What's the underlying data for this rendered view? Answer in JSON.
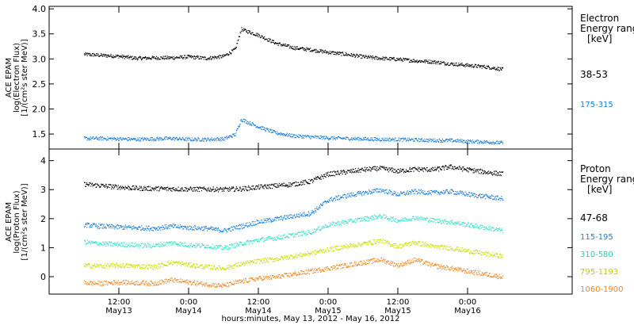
{
  "chart_data": [
    {
      "type": "scatter",
      "title": "",
      "ylabel_lines": [
        "ACE EPAM",
        "log(Electron Flux)",
        "[1/(cm²s ster MeV)]"
      ],
      "ylim": [
        1.2,
        4.05
      ],
      "yticks": [
        1.5,
        2.0,
        2.5,
        3.0,
        3.5,
        4.0
      ],
      "yticklabels": [
        "1.5",
        "2.0",
        "2.5",
        "3.0",
        "3.5",
        "4.0"
      ],
      "legend_title": [
        "Electron",
        "Energy ranges"
      ],
      "legend_unit": "[keV]",
      "series": [
        {
          "name": "38-53",
          "color": "#000000",
          "x": [
            0,
            3,
            6,
            9,
            12,
            15,
            18,
            21,
            24,
            26,
            27,
            30,
            33,
            36,
            39,
            42,
            45,
            48,
            51,
            54,
            57,
            60,
            63,
            66,
            69,
            72
          ],
          "y": [
            3.1,
            3.08,
            3.06,
            3.02,
            3.03,
            3.03,
            3.05,
            3.02,
            3.06,
            3.2,
            3.6,
            3.48,
            3.32,
            3.23,
            3.19,
            3.14,
            3.1,
            3.05,
            3.02,
            3.0,
            2.97,
            2.95,
            2.91,
            2.88,
            2.85,
            2.8
          ]
        },
        {
          "name": "175-315",
          "color": "#1a7fd8",
          "x": [
            0,
            3,
            6,
            9,
            12,
            15,
            18,
            21,
            24,
            26,
            27,
            30,
            33,
            36,
            39,
            42,
            45,
            48,
            51,
            54,
            57,
            60,
            63,
            66,
            69,
            72
          ],
          "y": [
            1.42,
            1.42,
            1.41,
            1.4,
            1.41,
            1.42,
            1.4,
            1.4,
            1.41,
            1.5,
            1.8,
            1.65,
            1.53,
            1.47,
            1.45,
            1.43,
            1.42,
            1.41,
            1.4,
            1.4,
            1.39,
            1.38,
            1.38,
            1.36,
            1.35,
            1.33
          ]
        }
      ]
    },
    {
      "type": "scatter",
      "title": "",
      "ylabel_lines": [
        "ACE EPAM",
        "log(Proton Flux)",
        "[1/(cm²s ster MeV)]"
      ],
      "ylim": [
        -0.6,
        4.4
      ],
      "yticks": [
        0,
        1,
        2,
        3,
        4
      ],
      "yticklabels": [
        "0",
        "1",
        "2",
        "3",
        "4"
      ],
      "legend_title": [
        "Proton",
        "Energy ranges"
      ],
      "legend_unit": "[keV]",
      "series": [
        {
          "name": "47-68",
          "color": "#000000",
          "x": [
            0,
            3,
            6,
            9,
            12,
            15,
            18,
            21,
            24,
            27,
            30,
            33,
            36,
            39,
            42,
            45,
            48,
            51,
            54,
            57,
            60,
            63,
            66,
            69,
            72
          ],
          "y": [
            3.2,
            3.15,
            3.1,
            3.06,
            3.05,
            3.04,
            3.03,
            3.03,
            3.02,
            3.04,
            3.1,
            3.15,
            3.2,
            3.3,
            3.55,
            3.62,
            3.7,
            3.75,
            3.65,
            3.72,
            3.7,
            3.8,
            3.7,
            3.62,
            3.55
          ]
        },
        {
          "name": "115-195",
          "color": "#1a7fd8",
          "x": [
            0,
            3,
            6,
            9,
            12,
            15,
            18,
            21,
            24,
            27,
            30,
            33,
            36,
            39,
            42,
            45,
            48,
            51,
            54,
            57,
            60,
            63,
            66,
            69,
            72
          ],
          "y": [
            1.8,
            1.75,
            1.72,
            1.7,
            1.68,
            1.75,
            1.7,
            1.68,
            1.6,
            1.75,
            1.9,
            2.0,
            2.1,
            2.2,
            2.65,
            2.8,
            2.9,
            3.0,
            2.85,
            2.95,
            2.9,
            2.95,
            2.85,
            2.78,
            2.7
          ]
        },
        {
          "name": "310-580",
          "color": "#33e0cc",
          "x": [
            0,
            3,
            6,
            9,
            12,
            15,
            18,
            21,
            24,
            27,
            30,
            33,
            36,
            39,
            42,
            45,
            48,
            51,
            54,
            57,
            60,
            63,
            66,
            69,
            72
          ],
          "y": [
            1.2,
            1.15,
            1.12,
            1.1,
            1.08,
            1.18,
            1.1,
            1.08,
            1.0,
            1.15,
            1.28,
            1.35,
            1.45,
            1.55,
            1.8,
            1.9,
            2.0,
            2.1,
            1.95,
            2.05,
            1.95,
            1.9,
            1.8,
            1.7,
            1.6
          ]
        },
        {
          "name": "795-1193",
          "color": "#ccdd00",
          "x": [
            0,
            3,
            6,
            9,
            12,
            15,
            18,
            21,
            24,
            27,
            30,
            33,
            36,
            39,
            42,
            45,
            48,
            51,
            54,
            57,
            60,
            63,
            66,
            69,
            72
          ],
          "y": [
            0.4,
            0.38,
            0.4,
            0.38,
            0.35,
            0.5,
            0.42,
            0.35,
            0.3,
            0.45,
            0.55,
            0.62,
            0.72,
            0.82,
            0.95,
            1.05,
            1.15,
            1.25,
            1.05,
            1.2,
            1.05,
            1.0,
            0.9,
            0.8,
            0.72
          ]
        },
        {
          "name": "1060-1900",
          "color": "#ee8820",
          "x": [
            0,
            3,
            6,
            9,
            12,
            15,
            18,
            21,
            24,
            27,
            30,
            33,
            36,
            39,
            42,
            45,
            48,
            51,
            54,
            57,
            60,
            63,
            66,
            69,
            72
          ],
          "y": [
            -0.2,
            -0.22,
            -0.18,
            -0.2,
            -0.22,
            -0.1,
            -0.18,
            -0.25,
            -0.3,
            -0.15,
            -0.05,
            0.0,
            0.1,
            0.2,
            0.3,
            0.4,
            0.5,
            0.6,
            0.4,
            0.6,
            0.4,
            0.3,
            0.2,
            0.1,
            0.0
          ]
        }
      ]
    }
  ],
  "x_axis": {
    "label": "hours:minutes, May 13, 2012 - May 16, 2012",
    "xlim": [
      -6,
      84
    ],
    "ticks": [
      {
        "x": 6,
        "time": "12:00",
        "day": "May13"
      },
      {
        "x": 18,
        "time": "0:00",
        "day": "May14"
      },
      {
        "x": 30,
        "time": "12:00",
        "day": "May14"
      },
      {
        "x": 42,
        "time": "0:00",
        "day": "May15"
      },
      {
        "x": 54,
        "time": "12:00",
        "day": "May15"
      },
      {
        "x": 66,
        "time": "0:00",
        "day": "May16"
      }
    ]
  }
}
